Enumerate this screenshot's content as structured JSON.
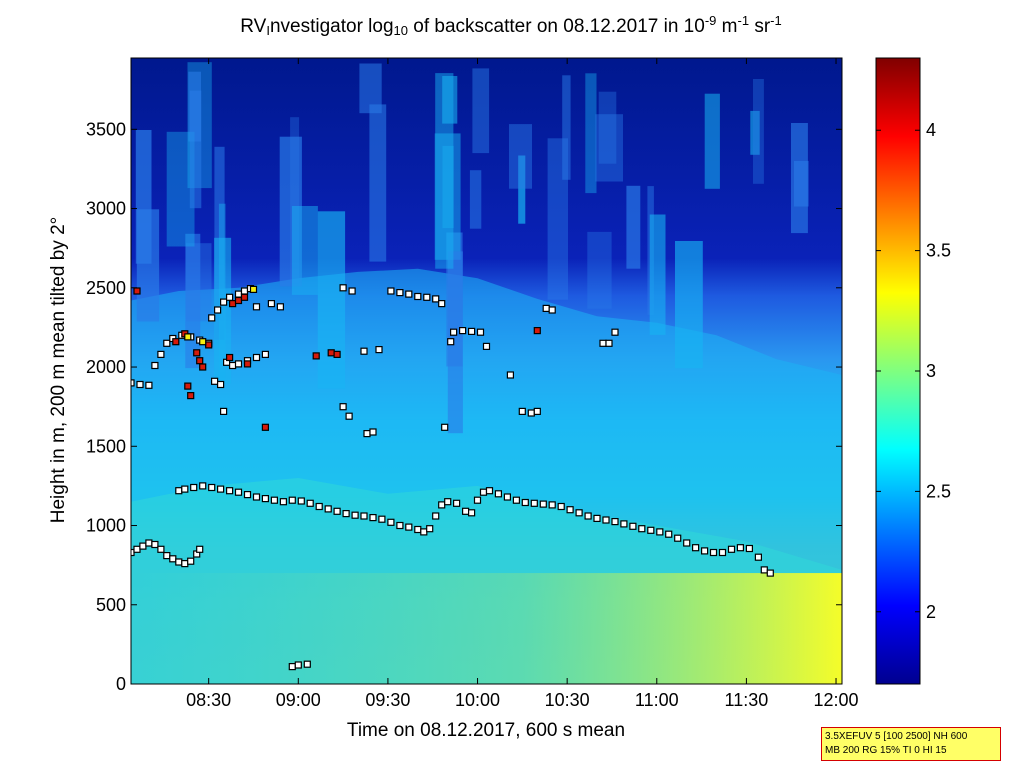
{
  "chart_data": {
    "type": "heatmap",
    "title_parts": {
      "a": "RV",
      "a_sub": "I",
      "b": "nvestigator log",
      "b_sub": "10",
      "c": " of backscatter on 08.12.2017 in 10",
      "c_sup": "-9",
      "d": " m",
      "d_sup": "-1",
      "e": " sr",
      "e_sup": "-1"
    },
    "xlabel": "Time on 08.12.2017, 600 s mean",
    "ylabel": "Height in m, 200 m mean tilted by 2°",
    "xlim": [
      "08:04",
      "12:02"
    ],
    "ylim": [
      0,
      3950
    ],
    "x_ticks": [
      "08:30",
      "09:00",
      "09:30",
      "10:00",
      "10:30",
      "11:00",
      "11:30",
      "12:00"
    ],
    "y_ticks": [
      0,
      500,
      1000,
      1500,
      2000,
      2500,
      3000,
      3500
    ],
    "colorbar": {
      "min": 1.7,
      "max": 4.3,
      "ticks": [
        "2",
        "2.5",
        "3",
        "3.5",
        "4"
      ],
      "colormap": "jet"
    },
    "layers": {
      "aerosol_top": [
        [
          "08:04",
          2420
        ],
        [
          "08:20",
          2480
        ],
        [
          "08:40",
          2500
        ],
        [
          "09:00",
          2560
        ],
        [
          "09:20",
          2600
        ],
        [
          "09:40",
          2620
        ],
        [
          "10:00",
          2560
        ],
        [
          "10:20",
          2430
        ],
        [
          "10:40",
          2320
        ],
        [
          "11:00",
          2280
        ],
        [
          "11:20",
          2200
        ],
        [
          "11:40",
          2050
        ],
        [
          "12:02",
          1950
        ]
      ],
      "boundary_layer_top": [
        [
          "08:04",
          1150
        ],
        [
          "08:30",
          1250
        ],
        [
          "09:00",
          1300
        ],
        [
          "09:30",
          1200
        ],
        [
          "10:00",
          1250
        ],
        [
          "10:30",
          1100
        ],
        [
          "11:00",
          1000
        ],
        [
          "11:30",
          900
        ],
        [
          "12:02",
          720
        ]
      ]
    },
    "series": [
      {
        "marker": "square",
        "points": [
          [
            "08:04",
            830
          ],
          [
            "08:06",
            850
          ],
          [
            "08:08",
            870
          ],
          [
            "08:10",
            890
          ],
          [
            "08:12",
            880
          ],
          [
            "08:14",
            850
          ],
          [
            "08:16",
            810
          ],
          [
            "08:18",
            790
          ],
          [
            "08:20",
            770
          ],
          [
            "08:22",
            760
          ],
          [
            "08:24",
            775
          ],
          [
            "08:26",
            820
          ],
          [
            "08:27",
            850
          ],
          [
            "08:20",
            1220
          ],
          [
            "08:22",
            1230
          ],
          [
            "08:25",
            1240
          ],
          [
            "08:28",
            1250
          ],
          [
            "08:31",
            1240
          ],
          [
            "08:34",
            1230
          ],
          [
            "08:37",
            1220
          ],
          [
            "08:40",
            1210
          ],
          [
            "08:43",
            1195
          ],
          [
            "08:46",
            1180
          ],
          [
            "08:49",
            1170
          ],
          [
            "08:52",
            1160
          ],
          [
            "08:55",
            1150
          ],
          [
            "08:58",
            1160
          ],
          [
            "09:01",
            1155
          ],
          [
            "09:04",
            1140
          ],
          [
            "09:07",
            1120
          ],
          [
            "09:10",
            1105
          ],
          [
            "09:13",
            1090
          ],
          [
            "09:16",
            1075
          ],
          [
            "09:19",
            1065
          ],
          [
            "09:22",
            1060
          ],
          [
            "09:25",
            1050
          ],
          [
            "09:28",
            1040
          ],
          [
            "09:31",
            1020
          ],
          [
            "09:34",
            1000
          ],
          [
            "09:37",
            990
          ],
          [
            "09:40",
            975
          ],
          [
            "09:42",
            960
          ],
          [
            "09:44",
            980
          ],
          [
            "09:46",
            1060
          ],
          [
            "09:48",
            1130
          ],
          [
            "09:50",
            1150
          ],
          [
            "09:53",
            1140
          ],
          [
            "09:56",
            1090
          ],
          [
            "09:58",
            1080
          ],
          [
            "10:00",
            1160
          ],
          [
            "10:02",
            1210
          ],
          [
            "10:04",
            1220
          ],
          [
            "10:07",
            1200
          ],
          [
            "10:10",
            1180
          ],
          [
            "10:13",
            1160
          ],
          [
            "10:16",
            1145
          ],
          [
            "10:19",
            1140
          ],
          [
            "10:22",
            1135
          ],
          [
            "10:25",
            1130
          ],
          [
            "10:28",
            1120
          ],
          [
            "10:31",
            1100
          ],
          [
            "10:34",
            1080
          ],
          [
            "10:37",
            1060
          ],
          [
            "10:40",
            1045
          ],
          [
            "10:43",
            1035
          ],
          [
            "10:46",
            1025
          ],
          [
            "10:49",
            1010
          ],
          [
            "10:52",
            995
          ],
          [
            "10:55",
            980
          ],
          [
            "10:58",
            970
          ],
          [
            "11:01",
            960
          ],
          [
            "11:04",
            945
          ],
          [
            "11:07",
            920
          ],
          [
            "11:10",
            890
          ],
          [
            "11:13",
            860
          ],
          [
            "11:16",
            840
          ],
          [
            "11:19",
            830
          ],
          [
            "11:22",
            830
          ],
          [
            "11:25",
            850
          ],
          [
            "11:28",
            860
          ],
          [
            "11:31",
            855
          ],
          [
            "11:34",
            800
          ],
          [
            "11:36",
            720
          ],
          [
            "11:38",
            700
          ],
          [
            "08:04",
            1900
          ],
          [
            "08:07",
            1890
          ],
          [
            "08:10",
            1885
          ],
          [
            "08:12",
            2010
          ],
          [
            "08:14",
            2080
          ],
          [
            "08:16",
            2150
          ],
          [
            "08:18",
            2180
          ],
          [
            "08:21",
            2200
          ],
          [
            "08:24",
            2190
          ],
          [
            "08:27",
            2170
          ],
          [
            "08:30",
            2150
          ],
          [
            "08:31",
            2310
          ],
          [
            "08:33",
            2360
          ],
          [
            "08:35",
            2410
          ],
          [
            "08:37",
            2440
          ],
          [
            "08:40",
            2460
          ],
          [
            "08:42",
            2480
          ],
          [
            "08:44",
            2495
          ],
          [
            "08:32",
            1910
          ],
          [
            "08:34",
            1890
          ],
          [
            "08:36",
            2030
          ],
          [
            "08:38",
            2010
          ],
          [
            "08:40",
            2020
          ],
          [
            "08:43",
            2040
          ],
          [
            "08:46",
            2060
          ],
          [
            "08:49",
            2080
          ],
          [
            "08:35",
            1720
          ],
          [
            "08:51",
            2400
          ],
          [
            "08:46",
            2380
          ],
          [
            "08:54",
            2380
          ],
          [
            "09:15",
            2500
          ],
          [
            "09:18",
            2480
          ],
          [
            "09:23",
            1580
          ],
          [
            "09:25",
            1590
          ],
          [
            "09:15",
            1750
          ],
          [
            "09:17",
            1690
          ],
          [
            "09:27",
            2110
          ],
          [
            "09:22",
            2100
          ],
          [
            "09:31",
            2480
          ],
          [
            "09:34",
            2470
          ],
          [
            "09:37",
            2460
          ],
          [
            "09:40",
            2445
          ],
          [
            "09:43",
            2440
          ],
          [
            "09:46",
            2430
          ],
          [
            "09:48",
            2400
          ],
          [
            "09:52",
            2220
          ],
          [
            "09:55",
            2230
          ],
          [
            "09:58",
            2225
          ],
          [
            "10:01",
            2220
          ],
          [
            "10:03",
            2130
          ],
          [
            "09:51",
            2160
          ],
          [
            "09:49",
            1620
          ],
          [
            "10:11",
            1950
          ],
          [
            "10:15",
            1720
          ],
          [
            "10:18",
            1710
          ],
          [
            "10:20",
            1720
          ],
          [
            "10:23",
            2370
          ],
          [
            "10:25",
            2360
          ],
          [
            "10:42",
            2150
          ],
          [
            "10:44",
            2150
          ],
          [
            "10:46",
            2220
          ],
          [
            "08:58",
            110
          ],
          [
            "09:00",
            120
          ],
          [
            "09:03",
            125
          ]
        ]
      },
      {
        "marker": "square-red",
        "points": [
          [
            "08:06",
            2480
          ],
          [
            "08:19",
            2160
          ],
          [
            "08:22",
            2210
          ],
          [
            "08:26",
            2090
          ],
          [
            "08:27",
            2040
          ],
          [
            "08:28",
            2000
          ],
          [
            "08:30",
            2140
          ],
          [
            "08:37",
            2060
          ],
          [
            "08:38",
            2400
          ],
          [
            "08:40",
            2420
          ],
          [
            "08:42",
            2440
          ],
          [
            "08:43",
            2020
          ],
          [
            "08:23",
            1880
          ],
          [
            "08:24",
            1820
          ],
          [
            "08:49",
            1620
          ],
          [
            "09:06",
            2070
          ],
          [
            "09:11",
            2090
          ],
          [
            "09:13",
            2080
          ],
          [
            "10:20",
            2230
          ]
        ]
      },
      {
        "marker": "square-yellow",
        "points": [
          [
            "08:23",
            2190
          ],
          [
            "08:28",
            2160
          ],
          [
            "08:45",
            2490
          ]
        ]
      }
    ]
  },
  "info_box": {
    "line1": "3.5XEFUV 5 [100 2500] NH 600",
    "line2": "MB 200 RG 15% TI 0 HI 15"
  }
}
